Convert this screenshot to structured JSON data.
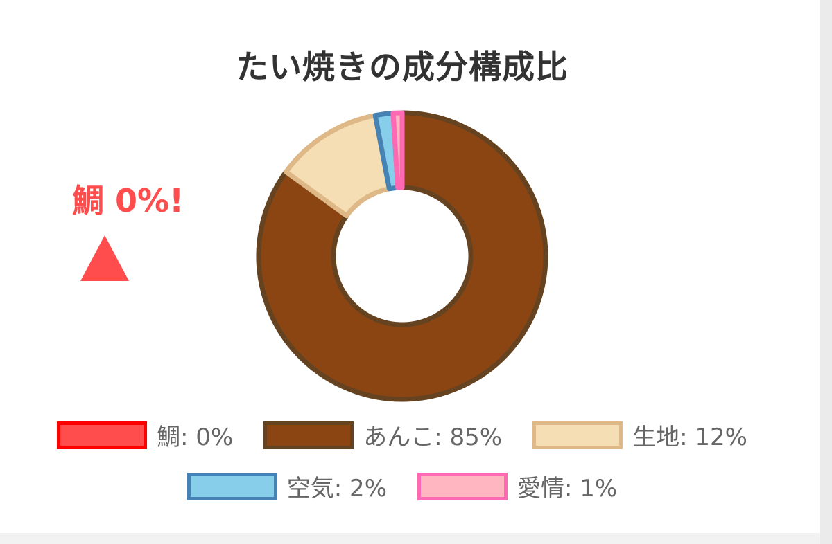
{
  "chart_data": {
    "type": "pie",
    "title": "たい焼きの成分構成比",
    "donut": true,
    "slices": [
      {
        "label": "鯛",
        "value": 0,
        "legend": "鯛: 0%",
        "color": "#ff4d4d",
        "border": "#ff0000"
      },
      {
        "label": "あんこ",
        "value": 85,
        "legend": "あんこ: 85%",
        "color": "#8b4513",
        "border": "#654321"
      },
      {
        "label": "生地",
        "value": 12,
        "legend": "生地: 12%",
        "color": "#f5deb3",
        "border": "#deb887"
      },
      {
        "label": "空気",
        "value": 2,
        "legend": "空気: 2%",
        "color": "#87ceeb",
        "border": "#4682b4"
      },
      {
        "label": "愛情",
        "value": 1,
        "legend": "愛情: 1%",
        "color": "#ffb6c1",
        "border": "#ff69b4"
      }
    ],
    "legend_position": "bottom",
    "annotation": {
      "text": "鯛 0%!",
      "color": "#ff4d4d"
    }
  }
}
